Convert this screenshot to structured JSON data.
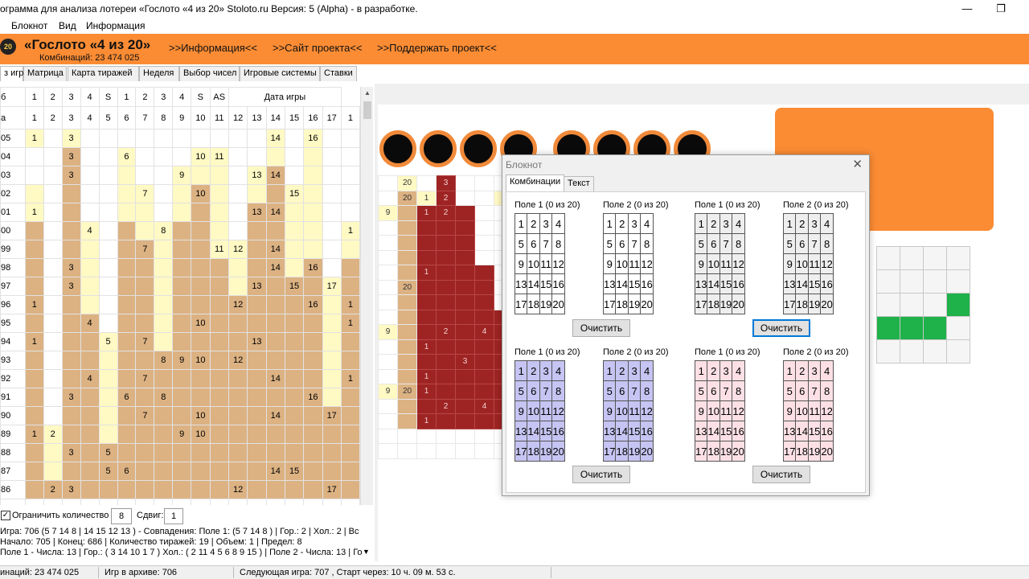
{
  "window": {
    "title": "ограмма для анализа лотереи  «Гослото «4 из 20» Stoloto.ru  Версия: 5 (Alpha) - в разработке.",
    "minimize": "—",
    "restore": "❐"
  },
  "menu": [
    "Блокнот",
    "Вид",
    "Информация"
  ],
  "banner": {
    "logo": "20",
    "title": "«Гослото «4 из 20»",
    "subtitle": "Комбинаций: 23 474 025",
    "links": [
      ">>Информация<<",
      ">>Сайт проекта<<",
      ">>Поддержать проект<<"
    ]
  },
  "tabs": [
    "з игр",
    "Матрица",
    "Карта тиражей",
    "Неделя",
    "Выбор чисел",
    "Игровые системы",
    "Ставки"
  ],
  "grid": {
    "header1": [
      "б",
      "1",
      "2",
      "3",
      "4",
      "S",
      "1",
      "2",
      "3",
      "4",
      "S",
      "AS",
      "Дата игры"
    ],
    "header2": [
      "а",
      "1",
      "2",
      "3",
      "4",
      "5",
      "6",
      "7",
      "8",
      "9",
      "10",
      "11",
      "12",
      "13",
      "14",
      "15",
      "16",
      "17",
      "1"
    ],
    "row_labels": [
      "05",
      "04",
      "03",
      "02",
      "01",
      "00",
      "99",
      "98",
      "97",
      "96",
      "95",
      "94",
      "93",
      "92",
      "91",
      "90",
      "89",
      "88",
      "87",
      "86"
    ]
  },
  "controls": {
    "limit_label": "Ограничить количество",
    "limit_value": "8",
    "shift_label": "Сдвиг:",
    "shift_value": "1",
    "info1": "Игра: 706 (5 7 14 8  | 14 15 12 13 ) - Совпадения: Поле 1: (5 7 14 8 ) | Гор.: 2 | Хол.: 2 | Вс",
    "info2": "Начало: 705 | Конец: 686 | Количество тиражей: 19 | Объем: 1 | Предел: 8",
    "info3": "Поле 1 - Числа: 13 | Гор.: ( 3 14 10 1 7 ) Хол.: ( 2 11 4 5 6 8 9 15 ) | Поле 2 - Числа: 13 | Го"
  },
  "status": {
    "combos": "инаций: 23 474 025",
    "archive": "Игр в архиве: 706",
    "next": "Следующая игра: 707 , Старт через: 10 ч. 09 м. 53 с."
  },
  "notebook": {
    "title": "Блокнот",
    "close": "✕",
    "tabs": [
      "Комбинации",
      "Текст"
    ],
    "field1": "Поле 1  (0 из 20)",
    "field2": "Поле 2  (0 из 20)",
    "clear": "Очистить",
    "numbers": [
      1,
      2,
      3,
      4,
      5,
      6,
      7,
      8,
      9,
      10,
      11,
      12,
      13,
      14,
      15,
      16,
      17,
      18,
      19,
      20
    ]
  },
  "colors": {
    "orange": "#fb8c34",
    "yellow_cell": "#fff9c4",
    "brown_cell": "#dcb283",
    "red_cell": "#9e2424",
    "green_cell": "#1fb14a",
    "blue_field": "#c6c4f2",
    "pink_field": "#fce0e6"
  }
}
